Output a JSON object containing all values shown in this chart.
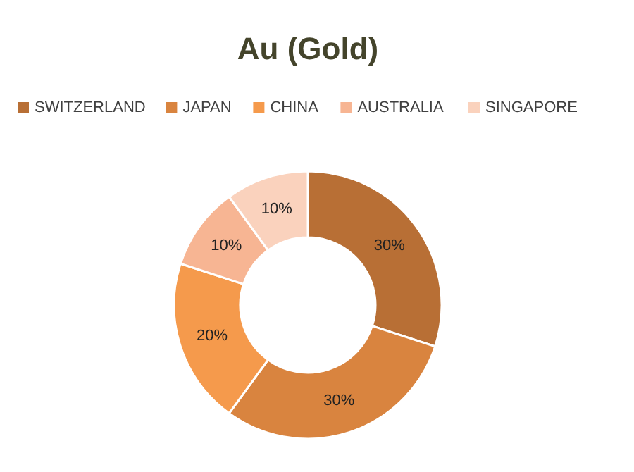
{
  "chart_data": {
    "type": "donut",
    "title": "Au (Gold)",
    "categories": [
      "SWITZERLAND",
      "JAPAN",
      "CHINA",
      "AUSTRALIA",
      "SINGAPORE"
    ],
    "values": [
      30,
      30,
      20,
      10,
      10
    ],
    "value_labels": [
      "30%",
      "30%",
      "20%",
      "10%",
      "10%"
    ],
    "colors": [
      "#b86f35",
      "#d9843f",
      "#f59a4c",
      "#f7b593",
      "#fad2bd"
    ],
    "legend": "top"
  }
}
